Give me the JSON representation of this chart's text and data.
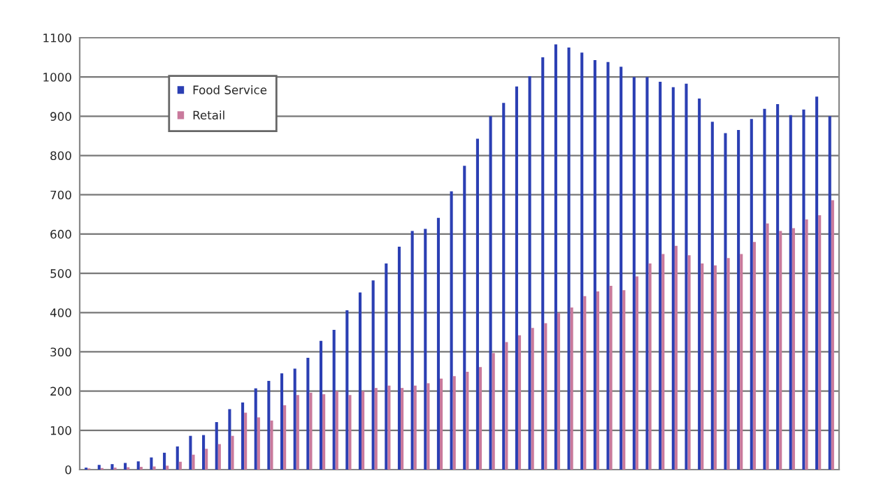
{
  "chart_data": {
    "type": "bar",
    "categories": [
      null,
      null,
      null,
      null,
      null,
      null,
      null,
      null,
      null,
      null,
      null,
      null,
      null,
      null,
      null,
      null,
      null,
      null,
      null,
      null,
      null,
      null,
      null,
      null,
      null,
      null,
      null,
      null,
      null,
      null,
      null,
      null,
      null,
      null,
      null,
      null,
      null,
      null,
      null,
      null,
      null,
      null,
      null,
      null,
      null,
      null,
      null,
      null,
      null,
      null,
      null,
      null,
      null,
      null,
      null,
      null,
      null,
      null
    ],
    "series": [
      {
        "name": "Food Service",
        "color": "#2b3fb3",
        "values": [
          5,
          12,
          14,
          17,
          21,
          31,
          43,
          59,
          86,
          88,
          121,
          154,
          171,
          207,
          226,
          245,
          257,
          285,
          328,
          356,
          406,
          451,
          482,
          525,
          568,
          608,
          613,
          641,
          709,
          774,
          843,
          900,
          934,
          976,
          1002,
          1050,
          1083,
          1075,
          1062,
          1043,
          1038,
          1026,
          1000,
          1000,
          988,
          974,
          983,
          945,
          886,
          857,
          865,
          893,
          919,
          931,
          903,
          917,
          950,
          900
        ]
      },
      {
        "name": "Retail",
        "color": "#c97a9c",
        "values": [
          3,
          4,
          5,
          6,
          7,
          8,
          10,
          20,
          38,
          53,
          65,
          86,
          145,
          133,
          125,
          164,
          190,
          196,
          192,
          200,
          190,
          200,
          208,
          214,
          208,
          214,
          220,
          232,
          238,
          249,
          261,
          297,
          325,
          342,
          361,
          373,
          399,
          413,
          442,
          454,
          468,
          457,
          492,
          525,
          549,
          570,
          546,
          525,
          520,
          539,
          549,
          580,
          627,
          608,
          615,
          637,
          648,
          686
        ]
      }
    ],
    "ylim": [
      0,
      1100
    ],
    "yticks": [
      0,
      100,
      200,
      300,
      400,
      500,
      600,
      700,
      800,
      900,
      1000,
      1100
    ],
    "grid": "y",
    "legend": "top left"
  }
}
